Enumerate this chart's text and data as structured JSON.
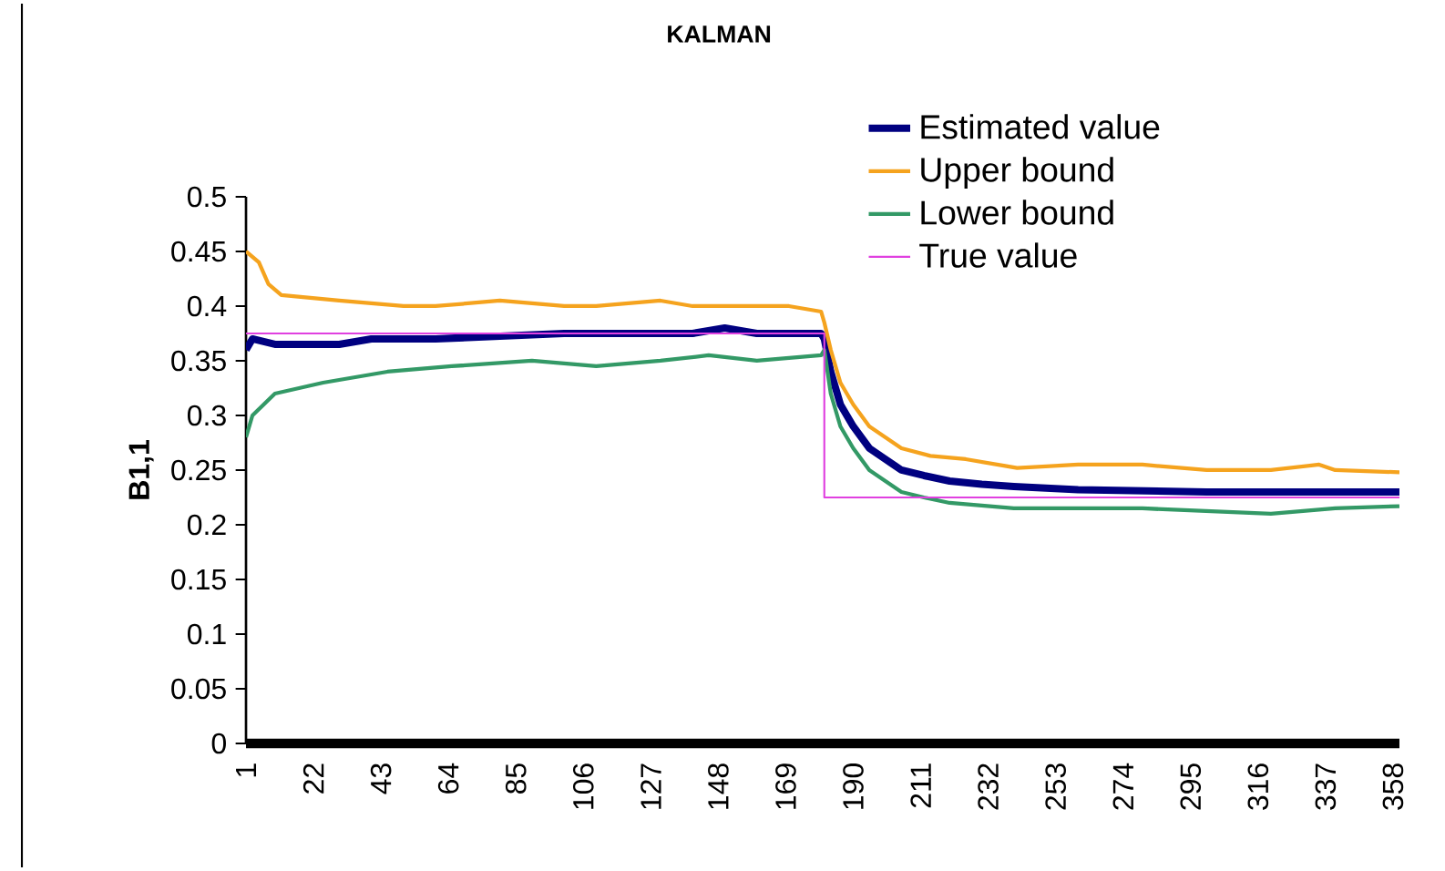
{
  "chart_data": {
    "type": "line",
    "title": "KALMAN",
    "ylabel": "B1,1",
    "xlim": [
      1,
      360
    ],
    "ylim": [
      0,
      0.5
    ],
    "xticks": [
      1,
      22,
      43,
      64,
      85,
      106,
      127,
      148,
      169,
      190,
      211,
      232,
      253,
      274,
      295,
      316,
      337,
      358
    ],
    "yticks": [
      0,
      0.05,
      0.1,
      0.15,
      0.2,
      0.25,
      0.3,
      0.35,
      0.4,
      0.45,
      0.5
    ],
    "legend": "top right",
    "grid": false,
    "series": [
      {
        "name": "Estimated value",
        "color": "#000080",
        "x": [
          1,
          3,
          10,
          30,
          40,
          60,
          100,
          140,
          150,
          160,
          180,
          181,
          183,
          186,
          190,
          195,
          200,
          205,
          212,
          220,
          230,
          240,
          260,
          300,
          340,
          360
        ],
        "values": [
          0.36,
          0.37,
          0.365,
          0.365,
          0.37,
          0.37,
          0.375,
          0.375,
          0.38,
          0.375,
          0.375,
          0.37,
          0.34,
          0.31,
          0.29,
          0.27,
          0.26,
          0.25,
          0.245,
          0.24,
          0.237,
          0.235,
          0.232,
          0.23,
          0.23,
          0.23
        ]
      },
      {
        "name": "Upper bound",
        "color": "#f5a31e",
        "x": [
          1,
          5,
          8,
          12,
          30,
          50,
          60,
          80,
          100,
          110,
          130,
          140,
          150,
          170,
          180,
          181,
          183,
          186,
          190,
          195,
          200,
          205,
          214,
          225,
          241,
          260,
          280,
          300,
          320,
          335,
          340,
          360
        ],
        "values": [
          0.45,
          0.44,
          0.42,
          0.41,
          0.405,
          0.4,
          0.4,
          0.405,
          0.4,
          0.4,
          0.405,
          0.4,
          0.4,
          0.4,
          0.395,
          0.385,
          0.36,
          0.33,
          0.31,
          0.29,
          0.28,
          0.27,
          0.263,
          0.26,
          0.252,
          0.255,
          0.255,
          0.25,
          0.25,
          0.255,
          0.25,
          0.248
        ]
      },
      {
        "name": "Lower bound",
        "color": "#339966",
        "x": [
          1,
          3,
          10,
          25,
          45,
          65,
          90,
          110,
          130,
          145,
          160,
          180,
          181,
          183,
          186,
          190,
          195,
          200,
          205,
          212,
          220,
          240,
          280,
          320,
          340,
          360
        ],
        "values": [
          0.28,
          0.3,
          0.32,
          0.33,
          0.34,
          0.345,
          0.35,
          0.345,
          0.35,
          0.355,
          0.35,
          0.355,
          0.36,
          0.32,
          0.29,
          0.27,
          0.25,
          0.24,
          0.23,
          0.225,
          0.22,
          0.215,
          0.215,
          0.21,
          0.215,
          0.217
        ]
      },
      {
        "name": "True value",
        "color": "#e040e0",
        "x": [
          1,
          181,
          181,
          360
        ],
        "values": [
          0.375,
          0.375,
          0.225,
          0.225
        ]
      }
    ]
  }
}
